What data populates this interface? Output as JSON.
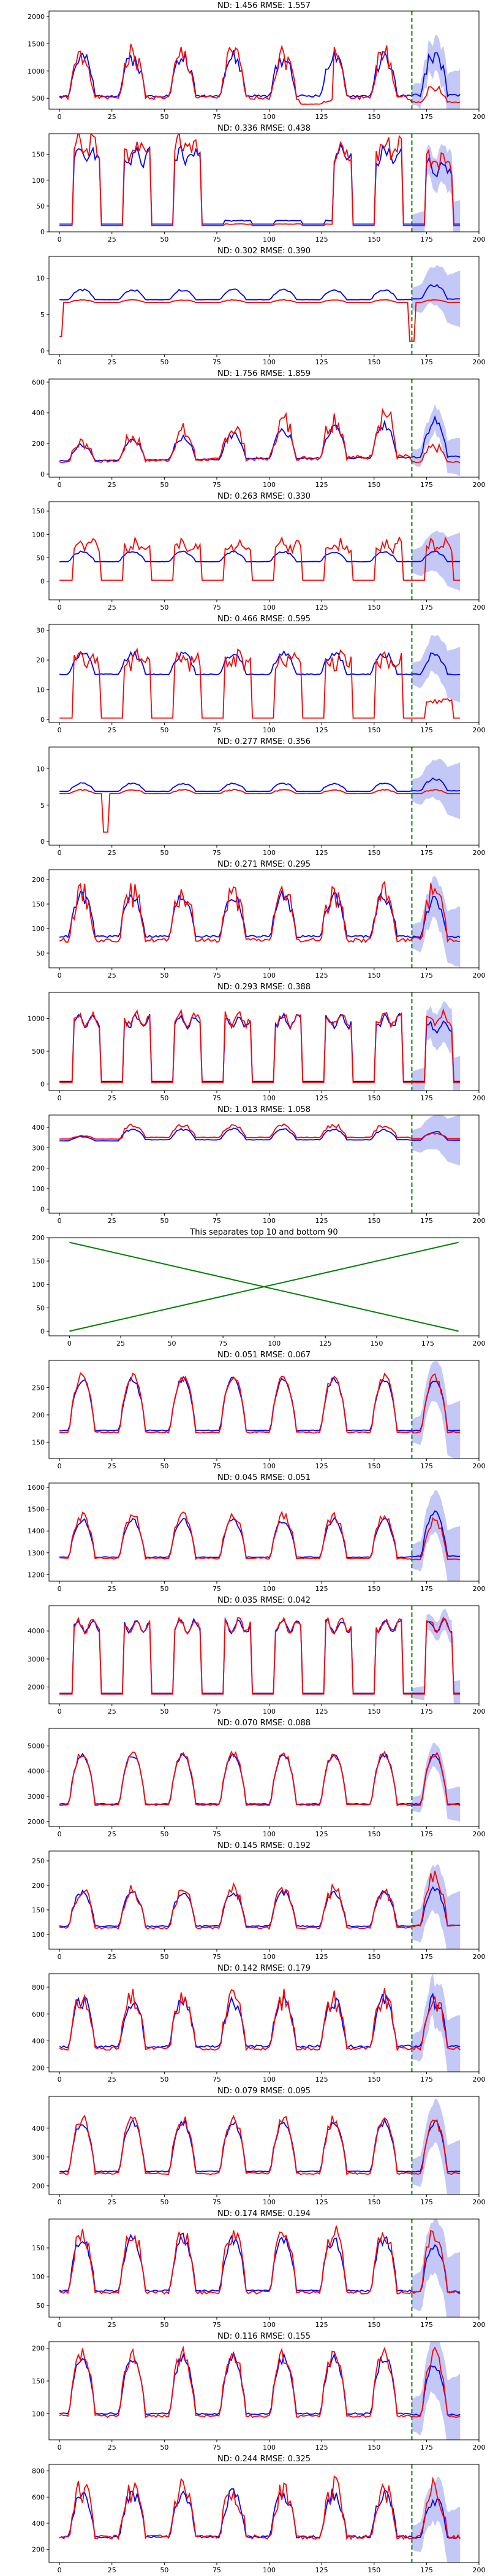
{
  "colors": {
    "actual": "#ff0000",
    "predicted": "#0000ff",
    "band": "#aab0f2",
    "divider": "#008000",
    "cross": "#008000",
    "axis": "#000000"
  },
  "chart_data": [
    {
      "type": "line",
      "title": "ND:  1.456 RMSE:  1.557",
      "xlim": [
        -5,
        200
      ],
      "ylim": [
        300,
        2100
      ],
      "yticks": [
        500,
        1000,
        1500,
        2000
      ],
      "xticks": [
        0,
        25,
        50,
        75,
        100,
        125,
        150,
        175,
        200
      ],
      "divider_x": 168,
      "series": [
        {
          "role": "actual",
          "base": 380,
          "amp": 900,
          "period": 24,
          "noise": 0.28,
          "seed": 1,
          "tail": 0.35,
          "dips": [
            [
              115,
              130,
              0.9
            ]
          ]
        },
        {
          "role": "predicted",
          "base": 420,
          "amp": 820,
          "period": 24,
          "noise": 0.18,
          "seed": 2,
          "tail": 1.1,
          "band": 300
        }
      ]
    },
    {
      "type": "line",
      "title": "ND:  0.336 RMSE:  0.438",
      "xlim": [
        -5,
        200
      ],
      "ylim": [
        0,
        190
      ],
      "yticks": [
        0,
        50,
        100,
        150
      ],
      "xticks": [
        0,
        25,
        50,
        75,
        100,
        125,
        150,
        175,
        200
      ],
      "divider_x": 168,
      "series": [
        {
          "role": "actual",
          "base": 12,
          "amp": 165,
          "period": 24,
          "noise": 0.12,
          "seed": 3,
          "tail": 0.8,
          "dips": [
            [
              70,
              130,
              0.98
            ]
          ],
          "square": true
        },
        {
          "role": "predicted",
          "base": 15,
          "amp": 145,
          "period": 24,
          "noise": 0.1,
          "seed": 4,
          "tail": 0.8,
          "band": 30,
          "dips": [
            [
              70,
              130,
              0.95
            ]
          ],
          "square": true
        }
      ]
    },
    {
      "type": "line",
      "title": "ND:  0.302 RMSE:  0.390",
      "xlim": [
        -5,
        200
      ],
      "ylim": [
        -0.5,
        13
      ],
      "yticks": [
        0,
        5,
        10
      ],
      "xticks": [
        0,
        25,
        50,
        75,
        100,
        125,
        150,
        175,
        200
      ],
      "divider_x": 168,
      "series": [
        {
          "role": "actual",
          "base": 6.6,
          "amp": 0.4,
          "period": 24,
          "noise": 0.12,
          "seed": 5,
          "tail": 1.0,
          "spikes": [
            [
              0,
              0.3
            ],
            [
              168,
              0.2
            ]
          ]
        },
        {
          "role": "predicted",
          "base": 6.8,
          "amp": 1.6,
          "period": 24,
          "noise": 0.1,
          "seed": 6,
          "tail": 1.4,
          "band": 2.5
        }
      ]
    },
    {
      "type": "line",
      "title": "ND:  1.756 RMSE:  1.859",
      "xlim": [
        -5,
        200
      ],
      "ylim": [
        -20,
        620
      ],
      "yticks": [
        0,
        200,
        400,
        600
      ],
      "xticks": [
        0,
        25,
        50,
        75,
        100,
        125,
        150,
        175,
        200
      ],
      "divider_x": 168,
      "series": [
        {
          "role": "actual",
          "base": 60,
          "amp": 220,
          "period": 24,
          "noise": 0.3,
          "seed": 7,
          "tail": 0.3,
          "grow": 1.8
        },
        {
          "role": "predicted",
          "base": 70,
          "amp": 180,
          "period": 24,
          "noise": 0.15,
          "seed": 8,
          "tail": 1.0,
          "grow": 1.6,
          "band": 80
        }
      ]
    },
    {
      "type": "line",
      "title": "ND:  0.263 RMSE:  0.330",
      "xlim": [
        -5,
        200
      ],
      "ylim": [
        -40,
        170
      ],
      "yticks": [
        0,
        50,
        100,
        150
      ],
      "xticks": [
        0,
        25,
        50,
        75,
        100,
        125,
        150,
        175,
        200
      ],
      "divider_x": 168,
      "series": [
        {
          "role": "actual",
          "base": 2,
          "amp": 80,
          "period": 24,
          "noise": 0.15,
          "seed": 9,
          "tail": 1.0,
          "square": true
        },
        {
          "role": "predicted",
          "base": 38,
          "amp": 25,
          "period": 24,
          "noise": 0.1,
          "seed": 10,
          "tail": 1.0,
          "band": 40
        }
      ]
    },
    {
      "type": "line",
      "title": "ND:  0.466 RMSE:  0.595",
      "xlim": [
        -5,
        200
      ],
      "ylim": [
        -1,
        32
      ],
      "yticks": [
        0,
        10,
        20,
        30
      ],
      "xticks": [
        0,
        25,
        50,
        75,
        100,
        125,
        150,
        175,
        200
      ],
      "divider_x": 168,
      "series": [
        {
          "role": "actual",
          "base": 0.5,
          "amp": 21,
          "period": 24,
          "noise": 0.15,
          "seed": 11,
          "tail": 0.3,
          "square": true
        },
        {
          "role": "predicted",
          "base": 14,
          "amp": 8,
          "period": 24,
          "noise": 0.15,
          "seed": 12,
          "tail": 1.0,
          "band": 6
        }
      ]
    },
    {
      "type": "line",
      "title": "ND:  0.277 RMSE:  0.356",
      "xlim": [
        -5,
        200
      ],
      "ylim": [
        -0.5,
        13
      ],
      "yticks": [
        0,
        5,
        10
      ],
      "xticks": [
        0,
        25,
        50,
        75,
        100,
        125,
        150,
        175,
        200
      ],
      "divider_x": 168,
      "series": [
        {
          "role": "actual",
          "base": 6.5,
          "amp": 0.6,
          "period": 24,
          "noise": 0.15,
          "seed": 13,
          "tail": 1.0,
          "spikes": [
            [
              22,
              0.2
            ]
          ]
        },
        {
          "role": "predicted",
          "base": 6.7,
          "amp": 1.3,
          "period": 24,
          "noise": 0.1,
          "seed": 14,
          "tail": 1.5,
          "band": 2.5
        }
      ]
    },
    {
      "type": "line",
      "title": "ND:  0.271 RMSE:  0.295",
      "xlim": [
        -5,
        200
      ],
      "ylim": [
        20,
        220
      ],
      "yticks": [
        50,
        100,
        150,
        200
      ],
      "xticks": [
        0,
        25,
        50,
        75,
        100,
        125,
        150,
        175,
        200
      ],
      "divider_x": 168,
      "series": [
        {
          "role": "actual",
          "base": 60,
          "amp": 110,
          "period": 24,
          "noise": 0.25,
          "seed": 15,
          "tail": 1.1
        },
        {
          "role": "predicted",
          "base": 70,
          "amp": 95,
          "period": 24,
          "noise": 0.15,
          "seed": 16,
          "tail": 0.9,
          "band": 40
        }
      ]
    },
    {
      "type": "line",
      "title": "ND:  0.293 RMSE:  0.388",
      "xlim": [
        -5,
        200
      ],
      "ylim": [
        -100,
        1400
      ],
      "yticks": [
        0,
        500,
        1000
      ],
      "xticks": [
        0,
        25,
        50,
        75,
        100,
        125,
        150,
        175,
        200
      ],
      "divider_x": 168,
      "series": [
        {
          "role": "actual",
          "base": 20,
          "amp": 1050,
          "period": 24,
          "noise": 0.06,
          "seed": 17,
          "tail": 1.0,
          "square": true
        },
        {
          "role": "predicted",
          "base": 40,
          "amp": 1000,
          "period": 24,
          "noise": 0.05,
          "seed": 18,
          "tail": 0.9,
          "band": 250,
          "square": true
        }
      ]
    },
    {
      "type": "line",
      "title": "ND:  1.013 RMSE:  1.058",
      "xlim": [
        -5,
        200
      ],
      "ylim": [
        -20,
        460
      ],
      "yticks": [
        0,
        100,
        200,
        300,
        400
      ],
      "xticks": [
        0,
        25,
        50,
        75,
        100,
        125,
        150,
        175,
        200
      ],
      "divider_x": 168,
      "series": [
        {
          "role": "actual",
          "base": 340,
          "amp": 70,
          "period": 24,
          "noise": 0.15,
          "seed": 19,
          "tail": 0.45,
          "dips": [
            [
              0,
              30,
              0.75
            ]
          ]
        },
        {
          "role": "predicted",
          "base": 330,
          "amp": 60,
          "period": 24,
          "noise": 0.1,
          "seed": 20,
          "tail": 0.8,
          "band": 80,
          "dips": [
            [
              0,
              28,
              0.6
            ]
          ]
        }
      ]
    },
    {
      "type": "line",
      "title": "This separates top 10 and bottom 90",
      "xlim": [
        -10,
        200
      ],
      "ylim": [
        -10,
        200
      ],
      "yticks": [
        0,
        50,
        100,
        150,
        200
      ],
      "xticks": [
        0,
        25,
        50,
        75,
        100,
        125,
        150,
        175,
        200
      ],
      "lines": [
        {
          "x": [
            0,
            190
          ],
          "y": [
            190,
            0
          ]
        },
        {
          "x": [
            0,
            190
          ],
          "y": [
            0,
            190
          ]
        }
      ]
    },
    {
      "type": "line",
      "title": "ND:  0.051 RMSE:  0.067",
      "xlim": [
        -5,
        200
      ],
      "ylim": [
        120,
        300
      ],
      "yticks": [
        150,
        200,
        250
      ],
      "xticks": [
        0,
        25,
        50,
        75,
        100,
        125,
        150,
        175,
        200
      ],
      "divider_x": 168,
      "series": [
        {
          "role": "actual",
          "base": 150,
          "amp": 120,
          "period": 24,
          "noise": 0.07,
          "seed": 21,
          "tail": 1.0
        },
        {
          "role": "predicted",
          "base": 155,
          "amp": 110,
          "period": 24,
          "noise": 0.05,
          "seed": 22,
          "tail": 1.0,
          "band": 35
        }
      ]
    },
    {
      "type": "line",
      "title": "ND:  0.045 RMSE:  0.051",
      "xlim": [
        -5,
        200
      ],
      "ylim": [
        1170,
        1620
      ],
      "yticks": [
        1200,
        1300,
        1400,
        1500,
        1600
      ],
      "xticks": [
        0,
        25,
        50,
        75,
        100,
        125,
        150,
        175,
        200
      ],
      "divider_x": 168,
      "series": [
        {
          "role": "actual",
          "base": 1240,
          "amp": 230,
          "period": 24,
          "noise": 0.1,
          "seed": 23,
          "tail": 0.9
        },
        {
          "role": "predicted",
          "base": 1250,
          "amp": 200,
          "period": 24,
          "noise": 0.06,
          "seed": 24,
          "tail": 1.15,
          "band": 90
        }
      ]
    },
    {
      "type": "line",
      "title": "ND:  0.035 RMSE:  0.042",
      "xlim": [
        -5,
        200
      ],
      "ylim": [
        1400,
        4900
      ],
      "yticks": [
        2000,
        3000,
        4000
      ],
      "xticks": [
        0,
        25,
        50,
        75,
        100,
        125,
        150,
        175,
        200
      ],
      "divider_x": 168,
      "series": [
        {
          "role": "actual",
          "base": 1750,
          "amp": 2650,
          "period": 24,
          "noise": 0.04,
          "seed": 25,
          "tail": 1.0,
          "square": true
        },
        {
          "role": "predicted",
          "base": 1780,
          "amp": 2600,
          "period": 24,
          "noise": 0.03,
          "seed": 26,
          "tail": 1.0,
          "band": 300,
          "square": true
        }
      ]
    },
    {
      "type": "line",
      "title": "ND:  0.070 RMSE:  0.088",
      "xlim": [
        -5,
        200
      ],
      "ylim": [
        1800,
        5700
      ],
      "yticks": [
        2000,
        3000,
        4000,
        5000
      ],
      "xticks": [
        0,
        25,
        50,
        75,
        100,
        125,
        150,
        175,
        200
      ],
      "divider_x": 168,
      "series": [
        {
          "role": "actual",
          "base": 2300,
          "amp": 2400,
          "period": 24,
          "noise": 0.06,
          "seed": 27,
          "tail": 1.0
        },
        {
          "role": "predicted",
          "base": 2350,
          "amp": 2300,
          "period": 24,
          "noise": 0.04,
          "seed": 28,
          "tail": 1.0,
          "band": 450
        }
      ]
    },
    {
      "type": "line",
      "title": "ND:  0.145 RMSE:  0.192",
      "xlim": [
        -5,
        200
      ],
      "ylim": [
        70,
        270
      ],
      "yticks": [
        100,
        150,
        200,
        250
      ],
      "xticks": [
        0,
        25,
        50,
        75,
        100,
        125,
        150,
        175,
        200
      ],
      "divider_x": 168,
      "series": [
        {
          "role": "actual",
          "base": 100,
          "amp": 90,
          "period": 24,
          "noise": 0.15,
          "seed": 29,
          "tail": 1.3
        },
        {
          "role": "predicted",
          "base": 105,
          "amp": 80,
          "period": 24,
          "noise": 0.08,
          "seed": 30,
          "tail": 1.1,
          "band": 45
        }
      ]
    },
    {
      "type": "line",
      "title": "ND:  0.142 RMSE:  0.179",
      "xlim": [
        -5,
        200
      ],
      "ylim": [
        170,
        900
      ],
      "yticks": [
        200,
        400,
        600,
        800
      ],
      "xticks": [
        0,
        25,
        50,
        75,
        100,
        125,
        150,
        175,
        200
      ],
      "divider_x": 168,
      "series": [
        {
          "role": "actual",
          "base": 280,
          "amp": 430,
          "period": 24,
          "noise": 0.2,
          "seed": 31,
          "tail": 1.0
        },
        {
          "role": "predicted",
          "base": 300,
          "amp": 400,
          "period": 24,
          "noise": 0.15,
          "seed": 32,
          "tail": 1.0,
          "band": 150
        }
      ]
    },
    {
      "type": "line",
      "title": "ND:  0.079 RMSE:  0.095",
      "xlim": [
        -5,
        200
      ],
      "ylim": [
        170,
        510
      ],
      "yticks": [
        200,
        300,
        400
      ],
      "xticks": [
        0,
        25,
        50,
        75,
        100,
        125,
        150,
        175,
        200
      ],
      "divider_x": 168,
      "series": [
        {
          "role": "actual",
          "base": 210,
          "amp": 220,
          "period": 24,
          "noise": 0.1,
          "seed": 33,
          "tail": 1.0
        },
        {
          "role": "predicted",
          "base": 220,
          "amp": 200,
          "period": 24,
          "noise": 0.06,
          "seed": 34,
          "tail": 1.0,
          "band": 70
        }
      ]
    },
    {
      "type": "line",
      "title": "ND:  0.174 RMSE:  0.194",
      "xlim": [
        -5,
        200
      ],
      "ylim": [
        30,
        200
      ],
      "yticks": [
        50,
        100,
        150
      ],
      "xticks": [
        0,
        25,
        50,
        75,
        100,
        125,
        150,
        175,
        200
      ],
      "divider_x": 168,
      "series": [
        {
          "role": "actual",
          "base": 55,
          "amp": 120,
          "period": 24,
          "noise": 0.15,
          "seed": 35,
          "tail": 1.0
        },
        {
          "role": "predicted",
          "base": 60,
          "amp": 105,
          "period": 24,
          "noise": 0.1,
          "seed": 36,
          "tail": 0.9,
          "band": 45
        }
      ]
    },
    {
      "type": "line",
      "title": "ND:  0.116 RMSE:  0.155",
      "xlim": [
        -5,
        200
      ],
      "ylim": [
        60,
        210
      ],
      "yticks": [
        100,
        150,
        200
      ],
      "xticks": [
        0,
        25,
        50,
        75,
        100,
        125,
        150,
        175,
        200
      ],
      "divider_x": 168,
      "series": [
        {
          "role": "actual",
          "base": 80,
          "amp": 110,
          "period": 24,
          "noise": 0.12,
          "seed": 37,
          "tail": 1.0
        },
        {
          "role": "predicted",
          "base": 85,
          "amp": 100,
          "period": 24,
          "noise": 0.08,
          "seed": 38,
          "tail": 0.9,
          "band": 40
        }
      ]
    },
    {
      "type": "line",
      "title": "ND:  0.244 RMSE:  0.325",
      "xlim": [
        -5,
        200
      ],
      "ylim": [
        100,
        850
      ],
      "yticks": [
        200,
        400,
        600,
        800
      ],
      "xticks": [
        0,
        25,
        50,
        75,
        100,
        125,
        150,
        175,
        200
      ],
      "divider_x": 168,
      "series": [
        {
          "role": "actual",
          "base": 230,
          "amp": 430,
          "period": 24,
          "noise": 0.25,
          "seed": 39,
          "tail": 1.0
        },
        {
          "role": "predicted",
          "base": 240,
          "amp": 380,
          "period": 24,
          "noise": 0.15,
          "seed": 40,
          "tail": 0.9,
          "band": 150
        }
      ]
    }
  ]
}
